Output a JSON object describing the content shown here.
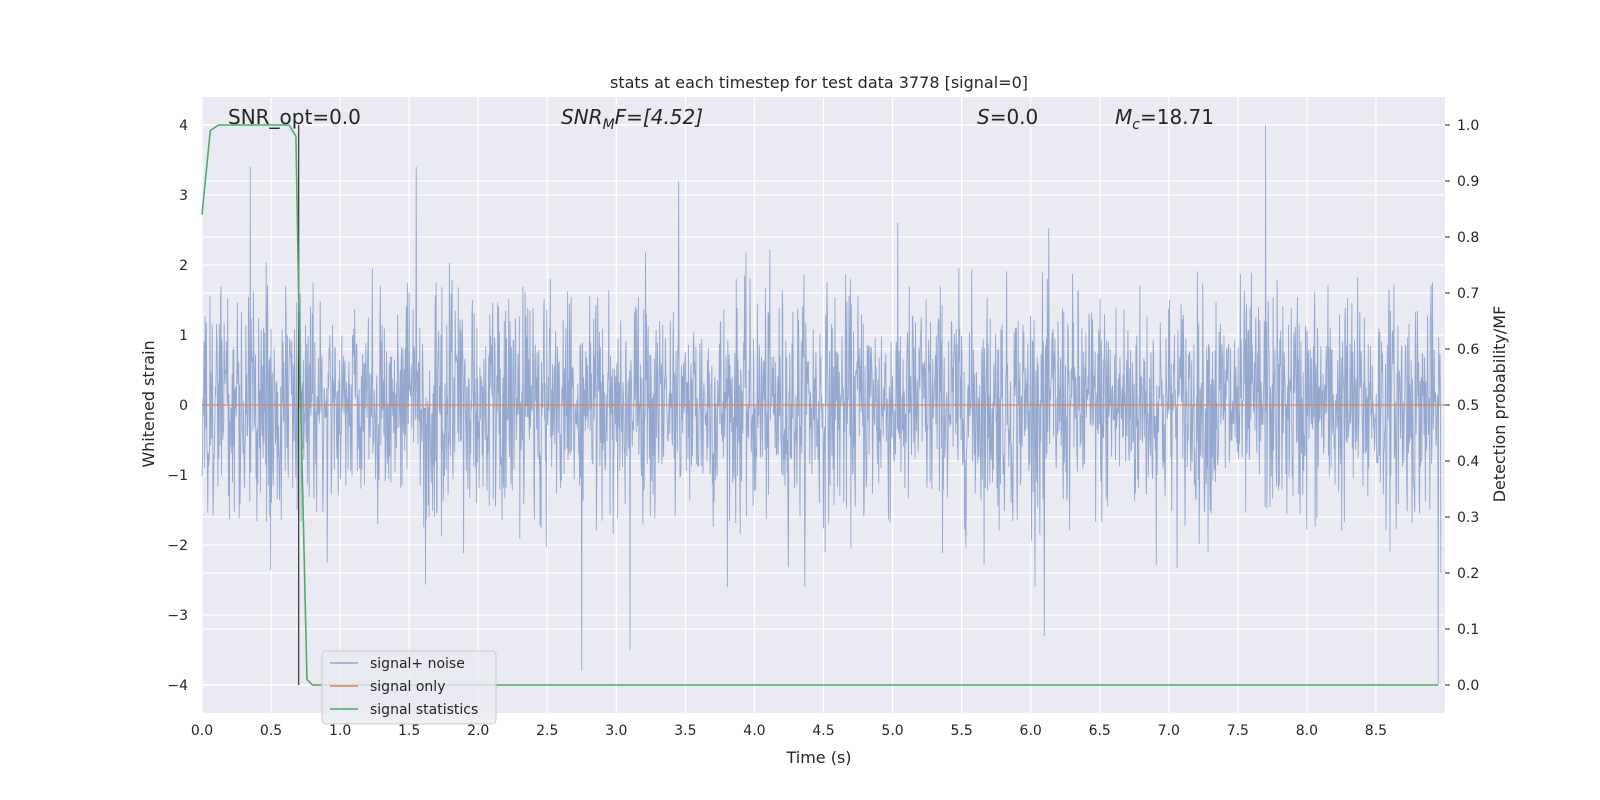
{
  "chart_data": {
    "type": "line",
    "title": "stats at each timestep for test data 3778 [signal=0]",
    "xlabel": "Time (s)",
    "ylabel_left": "Whitened strain",
    "ylabel_right": "Detection probability/MF",
    "xlim": [
      0.0,
      9.0
    ],
    "ylim_left": [
      -4.4,
      4.4
    ],
    "ylim_right": [
      -0.05,
      1.05
    ],
    "x_ticks": [
      "0.0",
      "0.5",
      "1.0",
      "1.5",
      "2.0",
      "2.5",
      "3.0",
      "3.5",
      "4.0",
      "4.5",
      "5.0",
      "5.5",
      "6.0",
      "6.5",
      "7.0",
      "7.5",
      "8.0",
      "8.5"
    ],
    "y_left_ticks": [
      "4",
      "3",
      "2",
      "1",
      "0",
      "−1",
      "−2",
      "−3",
      "−4"
    ],
    "y_right_ticks": [
      "1.0",
      "0.9",
      "0.8",
      "0.7",
      "0.6",
      "0.5",
      "0.4",
      "0.3",
      "0.2",
      "0.1",
      "0.0"
    ],
    "grid": true,
    "legend_position": "lower-left",
    "annotations": {
      "snr_opt": "SNR_opt=0.0",
      "snr_mf_main": "SNR",
      "snr_mf_sub": "M",
      "snr_mf_rest": "F=[4.52]",
      "s_main": "S",
      "s_rest": "=0.0",
      "mc_main": "M",
      "mc_sub": "c",
      "mc_rest": "=18.71"
    },
    "series": [
      {
        "name": "signal+ noise",
        "color": "#8fa4cc",
        "axis": "left",
        "description_level": "noise band approximately between -1.6 and 1.6, spikes reaching about +4.0 and -3.8",
        "typical_range": [
          -1.6,
          1.6
        ],
        "peak_points": [
          [
            0.35,
            3.4
          ],
          [
            1.55,
            3.4
          ],
          [
            2.75,
            -3.8
          ],
          [
            3.1,
            -3.5
          ],
          [
            3.45,
            3.2
          ],
          [
            6.1,
            -3.3
          ],
          [
            7.7,
            4.0
          ],
          [
            8.95,
            -4.0
          ]
        ]
      },
      {
        "name": "signal only",
        "color": "#dd8452",
        "axis": "left",
        "x": [
          0.0,
          9.0
        ],
        "y": [
          0.0,
          0.0
        ]
      },
      {
        "name": "signal statistics",
        "color": "#55a868",
        "axis": "right",
        "x": [
          0.0,
          0.06,
          0.12,
          0.5,
          0.63,
          0.68,
          0.71,
          0.76,
          0.8,
          8.2,
          8.95
        ],
        "y": [
          0.84,
          0.99,
          1.0,
          1.0,
          1.0,
          0.98,
          0.55,
          0.01,
          0.0,
          0.0,
          0.0
        ]
      }
    ],
    "vertical_marker": {
      "x": 0.7,
      "y_from": 4.0,
      "y_to": -4.0,
      "color": "#333333"
    }
  }
}
